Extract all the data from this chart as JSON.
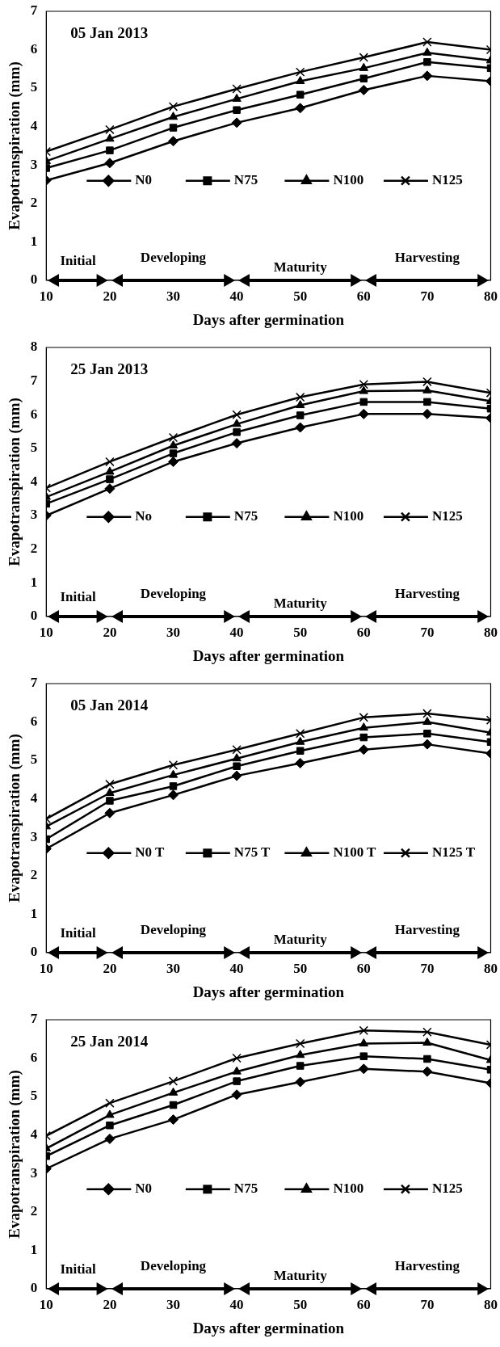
{
  "chart_data": [
    {
      "type": "line",
      "title": "05 Jan 2013",
      "xlabel": "Days after germination",
      "ylabel": "Evapotranspiration (mm)",
      "x": [
        10,
        20,
        30,
        40,
        50,
        60,
        70,
        80
      ],
      "xlim": [
        10,
        80
      ],
      "xticks": [
        10,
        20,
        30,
        40,
        50,
        60,
        70,
        80
      ],
      "ylim": [
        0,
        7
      ],
      "yticks": [
        0,
        1,
        2,
        3,
        4,
        5,
        6,
        7
      ],
      "grid": false,
      "legend": "center",
      "line_style": "solid",
      "series": [
        {
          "name": "N0",
          "color": "#000000",
          "marker": "diamond",
          "values": [
            2.6,
            3.05,
            3.62,
            4.1,
            4.48,
            4.95,
            5.32,
            5.18
          ]
        },
        {
          "name": "N75",
          "color": "#000000",
          "marker": "square",
          "values": [
            2.92,
            3.38,
            3.97,
            4.43,
            4.83,
            5.25,
            5.68,
            5.52
          ]
        },
        {
          "name": "N100",
          "color": "#000000",
          "marker": "triangle",
          "values": [
            3.1,
            3.68,
            4.25,
            4.72,
            5.18,
            5.52,
            5.92,
            5.72
          ]
        },
        {
          "name": "N125",
          "color": "#000000",
          "marker": "cross",
          "values": [
            3.35,
            3.92,
            4.52,
            4.98,
            5.42,
            5.8,
            6.2,
            6.0
          ]
        }
      ],
      "annotations": [
        "Initial",
        "Developing",
        "Maturity",
        "Harvesting"
      ]
    },
    {
      "type": "line",
      "title": "25 Jan 2013",
      "xlabel": "Days after germination",
      "ylabel": "Evapotranspiration (mm)",
      "x": [
        10,
        20,
        30,
        40,
        50,
        60,
        70,
        80
      ],
      "xlim": [
        10,
        80
      ],
      "xticks": [
        10,
        20,
        30,
        40,
        50,
        60,
        70,
        80
      ],
      "ylim": [
        0,
        8
      ],
      "yticks": [
        0,
        1,
        2,
        3,
        4,
        5,
        6,
        7,
        8
      ],
      "grid": false,
      "legend": "center",
      "line_style": "solid",
      "series": [
        {
          "name": "No",
          "color": "#000000",
          "marker": "diamond",
          "values": [
            3.0,
            3.8,
            4.6,
            5.15,
            5.62,
            6.02,
            6.02,
            5.9
          ]
        },
        {
          "name": "N75",
          "color": "#000000",
          "marker": "square",
          "values": [
            3.35,
            4.08,
            4.85,
            5.48,
            5.98,
            6.38,
            6.38,
            6.18
          ]
        },
        {
          "name": "N100",
          "color": "#000000",
          "marker": "triangle",
          "values": [
            3.55,
            4.3,
            5.08,
            5.72,
            6.28,
            6.7,
            6.72,
            6.4
          ]
        },
        {
          "name": "N125",
          "color": "#000000",
          "marker": "cross",
          "values": [
            3.82,
            4.6,
            5.32,
            6.0,
            6.52,
            6.9,
            6.98,
            6.65
          ]
        }
      ],
      "annotations": [
        "Initial",
        "Developing",
        "Maturity",
        "Harvesting"
      ]
    },
    {
      "type": "line",
      "title": "05 Jan 2014",
      "xlabel": "Days after germination",
      "ylabel": "Evapotranspiration (mm)",
      "x": [
        10,
        20,
        30,
        40,
        50,
        60,
        70,
        80
      ],
      "xlim": [
        10,
        80
      ],
      "xticks": [
        10,
        20,
        30,
        40,
        50,
        60,
        70,
        80
      ],
      "ylim": [
        0,
        7
      ],
      "yticks": [
        0,
        1,
        2,
        3,
        4,
        5,
        6,
        7
      ],
      "grid": false,
      "legend": "center",
      "line_style": "solid",
      "series": [
        {
          "name": "N0 T",
          "color": "#000000",
          "marker": "diamond",
          "values": [
            2.7,
            3.63,
            4.1,
            4.6,
            4.93,
            5.28,
            5.42,
            5.18
          ]
        },
        {
          "name": "N75 T",
          "color": "#000000",
          "marker": "square",
          "values": [
            2.95,
            3.95,
            4.33,
            4.85,
            5.25,
            5.6,
            5.7,
            5.48
          ]
        },
        {
          "name": "N100 T",
          "color": "#000000",
          "marker": "triangle",
          "values": [
            3.28,
            4.15,
            4.62,
            5.05,
            5.48,
            5.85,
            6.0,
            5.72
          ]
        },
        {
          "name": "N125 T",
          "color": "#000000",
          "marker": "cross",
          "values": [
            3.48,
            4.38,
            4.88,
            5.28,
            5.7,
            6.12,
            6.22,
            6.05
          ]
        }
      ],
      "annotations": [
        "Initial",
        "Developing",
        "Maturity",
        "Harvesting"
      ]
    },
    {
      "type": "line",
      "title": "25 Jan 2014",
      "xlabel": "Days after germination",
      "ylabel": "Evapotranspiration (mm)",
      "x": [
        10,
        20,
        30,
        40,
        50,
        60,
        70,
        80
      ],
      "xlim": [
        10,
        80
      ],
      "xticks": [
        10,
        20,
        30,
        40,
        50,
        60,
        70,
        80
      ],
      "ylim": [
        0,
        7
      ],
      "yticks": [
        0,
        1,
        2,
        3,
        4,
        5,
        6,
        7
      ],
      "grid": false,
      "legend": "center",
      "line_style": "solid",
      "series": [
        {
          "name": "N0",
          "color": "#000000",
          "marker": "diamond",
          "values": [
            3.12,
            3.9,
            4.4,
            5.05,
            5.38,
            5.72,
            5.65,
            5.35
          ]
        },
        {
          "name": "N75",
          "color": "#000000",
          "marker": "square",
          "values": [
            3.45,
            4.25,
            4.78,
            5.4,
            5.8,
            6.05,
            5.98,
            5.7
          ]
        },
        {
          "name": "N100",
          "color": "#000000",
          "marker": "triangle",
          "values": [
            3.65,
            4.52,
            5.1,
            5.65,
            6.08,
            6.38,
            6.4,
            5.95
          ]
        },
        {
          "name": "N125",
          "color": "#000000",
          "marker": "cross",
          "values": [
            3.98,
            4.83,
            5.4,
            6.0,
            6.38,
            6.72,
            6.68,
            6.35
          ]
        }
      ],
      "annotations": [
        "Initial",
        "Developing",
        "Maturity",
        "Harvesting"
      ]
    }
  ]
}
